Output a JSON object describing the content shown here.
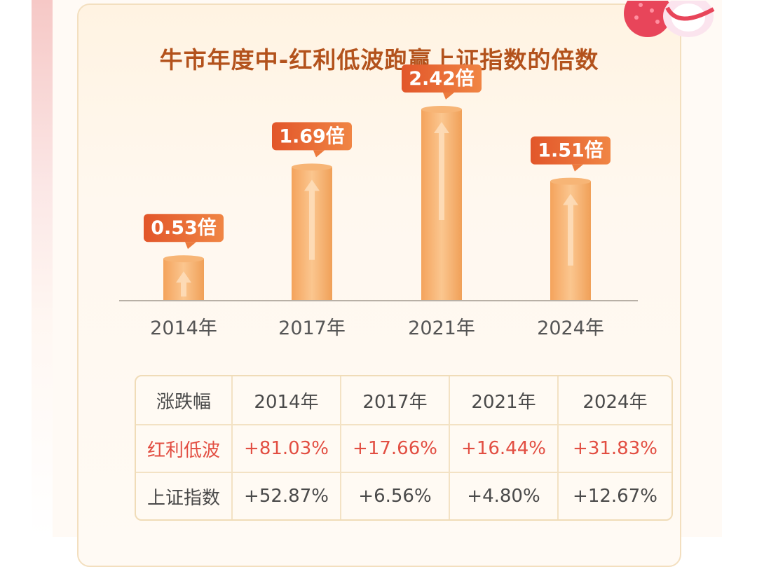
{
  "chart_data": {
    "type": "bar",
    "title": "牛市年度中-红利低波跑赢上证指数的倍数",
    "categories": [
      "2014年",
      "2017年",
      "2021年",
      "2024年"
    ],
    "values": [
      0.53,
      1.69,
      2.42,
      1.51
    ],
    "value_labels": [
      "0.53倍",
      "1.69倍",
      "2.42倍",
      "1.51倍"
    ],
    "ylim": [
      0,
      2.5
    ],
    "bar_color": "#f2a560",
    "label_color": "#e2622c"
  },
  "table": {
    "header": [
      "涨跌幅",
      "2014年",
      "2017年",
      "2021年",
      "2024年"
    ],
    "rows": [
      {
        "label": "红利低波",
        "values": [
          "+81.03%",
          "+17.66%",
          "+16.44%",
          "+31.83%"
        ]
      },
      {
        "label": "上证指数",
        "values": [
          "+52.87%",
          "+6.56%",
          "+4.80%",
          "+12.67%"
        ]
      }
    ]
  }
}
